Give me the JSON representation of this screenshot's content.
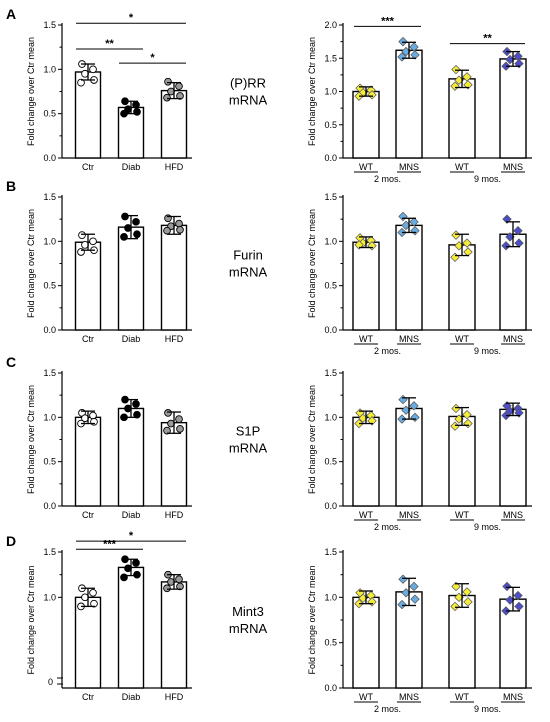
{
  "figure": {
    "rows": [
      {
        "letter": "A",
        "gene": [
          "(P)RR",
          "mRNA"
        ]
      },
      {
        "letter": "B",
        "gene": [
          "Furin",
          "mRNA"
        ]
      },
      {
        "letter": "C",
        "gene": [
          "S1P",
          "mRNA"
        ]
      },
      {
        "letter": "D",
        "gene": [
          "Mint3",
          "mRNA"
        ]
      }
    ],
    "ylabel": "Fold change over Ctr mean",
    "left_categories": [
      "Ctr",
      "Diab",
      "HFD"
    ],
    "right_categories": [
      "WT",
      "MNS",
      "WT",
      "MNS"
    ],
    "right_groups": [
      "2 mos.",
      "9 mos."
    ],
    "colors": {
      "ctr": "#ffffff",
      "diab": "#000000",
      "hfd": "#9a9a9a",
      "wt": "#f5ec3a",
      "mns": "#6aabe0",
      "mns9": "#4d4dc8"
    }
  },
  "chart_data": [
    {
      "type": "bar",
      "panel": "A-left",
      "categories": [
        "Ctr",
        "Diab",
        "HFD"
      ],
      "values": [
        0.97,
        0.57,
        0.76
      ],
      "errors": [
        0.09,
        0.07,
        0.09
      ],
      "ylim": [
        0,
        1.5
      ],
      "yticks": [
        "0.0",
        "0.5",
        "1.0",
        "1.5"
      ],
      "ylabel": "Fold change over Ctr mean",
      "points": [
        [
          1.06,
          1.0,
          0.95,
          0.88,
          0.85
        ],
        [
          0.64,
          0.6,
          0.55,
          0.52,
          0.5
        ],
        [
          0.86,
          0.81,
          0.75,
          0.7,
          0.68
        ]
      ],
      "significance": [
        {
          "from": 0,
          "to": 1,
          "label": "**"
        },
        {
          "from": 0,
          "to": 2,
          "label": "*"
        },
        {
          "from": 1,
          "to": 2,
          "label": "*"
        }
      ]
    },
    {
      "type": "bar",
      "panel": "A-right",
      "categories": [
        "WT",
        "MNS",
        "WT",
        "MNS"
      ],
      "groups": [
        "2 mos.",
        "9 mos."
      ],
      "values": [
        1.0,
        1.62,
        1.19,
        1.49
      ],
      "errors": [
        0.07,
        0.12,
        0.13,
        0.11
      ],
      "ylim": [
        0,
        2.0
      ],
      "yticks": [
        "0.0",
        "0.5",
        "1.0",
        "1.5",
        "2.0"
      ],
      "ylabel": "Fold change over Ctr mean",
      "points": [
        [
          1.05,
          1.02,
          0.98,
          0.95,
          0.93
        ],
        [
          1.75,
          1.67,
          1.6,
          1.55,
          1.52
        ],
        [
          1.33,
          1.22,
          1.17,
          1.1,
          1.08
        ],
        [
          1.6,
          1.53,
          1.48,
          1.42,
          1.38
        ]
      ],
      "significance": [
        {
          "from": 0,
          "to": 1,
          "label": "***"
        },
        {
          "from": 2,
          "to": 3,
          "label": "**"
        }
      ]
    },
    {
      "type": "bar",
      "panel": "B-left",
      "categories": [
        "Ctr",
        "Diab",
        "HFD"
      ],
      "values": [
        0.99,
        1.16,
        1.18
      ],
      "errors": [
        0.09,
        0.13,
        0.1
      ],
      "ylim": [
        0,
        1.5
      ],
      "yticks": [
        "0.0",
        "0.5",
        "1.0",
        "1.5"
      ],
      "ylabel": "Fold change over Ctr mean",
      "points": [
        [
          1.07,
          1.0,
          0.96,
          0.9,
          0.88
        ],
        [
          1.28,
          1.22,
          1.15,
          1.08,
          1.05
        ],
        [
          1.26,
          1.2,
          1.17,
          1.13,
          1.12
        ]
      ]
    },
    {
      "type": "bar",
      "panel": "B-right",
      "categories": [
        "WT",
        "MNS",
        "WT",
        "MNS"
      ],
      "groups": [
        "2 mos.",
        "9 mos."
      ],
      "values": [
        0.99,
        1.18,
        0.96,
        1.08
      ],
      "errors": [
        0.06,
        0.08,
        0.12,
        0.14
      ],
      "ylim": [
        0,
        1.5
      ],
      "yticks": [
        "0.0",
        "0.5",
        "1.0",
        "1.5"
      ],
      "ylabel": "Fold change over Ctr mean",
      "points": [
        [
          1.04,
          1.01,
          0.98,
          0.95,
          0.96
        ],
        [
          1.28,
          1.22,
          1.18,
          1.12,
          1.1
        ],
        [
          1.07,
          0.98,
          0.95,
          0.88,
          0.82
        ],
        [
          1.25,
          1.12,
          1.05,
          0.98,
          0.95
        ]
      ]
    },
    {
      "type": "bar",
      "panel": "C-left",
      "categories": [
        "Ctr",
        "Diab",
        "HFD"
      ],
      "values": [
        1.0,
        1.1,
        0.94
      ],
      "errors": [
        0.07,
        0.1,
        0.12
      ],
      "ylim": [
        0,
        1.5
      ],
      "yticks": [
        "0.0",
        "0.5",
        "1.0",
        "1.5"
      ],
      "ylabel": "Fold change over Ctr mean",
      "points": [
        [
          1.05,
          1.02,
          0.99,
          0.95,
          0.93
        ],
        [
          1.2,
          1.15,
          1.1,
          1.03,
          1.0
        ],
        [
          1.05,
          0.98,
          0.93,
          0.87,
          0.85
        ]
      ]
    },
    {
      "type": "bar",
      "panel": "C-right",
      "categories": [
        "WT",
        "MNS",
        "WT",
        "MNS"
      ],
      "groups": [
        "2 mos.",
        "9 mos."
      ],
      "values": [
        1.0,
        1.1,
        1.01,
        1.09
      ],
      "errors": [
        0.07,
        0.12,
        0.1,
        0.07
      ],
      "ylim": [
        0,
        1.5
      ],
      "yticks": [
        "0.0",
        "0.5",
        "1.0",
        "1.5"
      ],
      "ylabel": "Fold change over Ctr mean",
      "points": [
        [
          1.05,
          1.02,
          0.99,
          0.96,
          0.93
        ],
        [
          1.2,
          1.13,
          1.08,
          1.0,
          0.98
        ],
        [
          1.1,
          1.03,
          0.98,
          0.93,
          0.9
        ],
        [
          1.13,
          1.1,
          1.07,
          1.05,
          1.02
        ]
      ]
    },
    {
      "type": "bar",
      "panel": "D-left",
      "categories": [
        "Ctr",
        "Diab",
        "HFD"
      ],
      "values": [
        1.0,
        1.33,
        1.17
      ],
      "errors": [
        0.1,
        0.09,
        0.08
      ],
      "ylim": [
        0,
        1.5
      ],
      "yticks": [
        "1.0",
        "1.5"
      ],
      "ylabel": "Fold change over Ctr mean",
      "points": [
        [
          1.1,
          1.05,
          1.0,
          0.93,
          0.9
        ],
        [
          1.42,
          1.38,
          1.32,
          1.25,
          1.22
        ],
        [
          1.25,
          1.2,
          1.17,
          1.12,
          1.1
        ]
      ],
      "significance": [
        {
          "from": 0,
          "to": 1,
          "label": "***"
        },
        {
          "from": 0,
          "to": 2,
          "label": "*"
        }
      ]
    },
    {
      "type": "bar",
      "panel": "D-right",
      "categories": [
        "WT",
        "MNS",
        "WT",
        "MNS"
      ],
      "groups": [
        "2 mos.",
        "9 mos."
      ],
      "values": [
        1.0,
        1.06,
        1.02,
        0.98
      ],
      "errors": [
        0.07,
        0.15,
        0.13,
        0.13
      ],
      "ylim": [
        0,
        1.5
      ],
      "yticks": [
        "0.0",
        "0.5",
        "1.0",
        "1.5"
      ],
      "ylabel": "Fold change over Ctr mean",
      "points": [
        [
          1.05,
          1.02,
          0.99,
          0.95,
          0.93
        ],
        [
          1.2,
          1.12,
          1.05,
          0.98,
          0.92
        ],
        [
          1.12,
          1.06,
          1.0,
          0.95,
          0.9
        ],
        [
          1.12,
          1.02,
          0.97,
          0.9,
          0.85
        ]
      ]
    }
  ]
}
